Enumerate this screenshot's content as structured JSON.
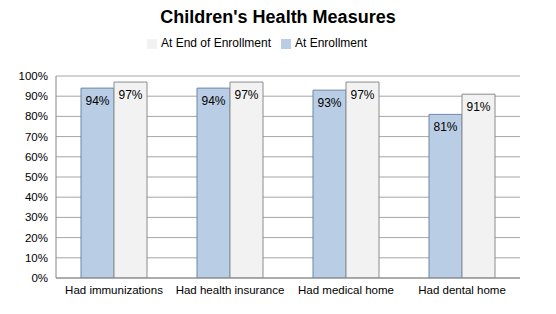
{
  "chart_data": {
    "type": "bar",
    "title": "Children's Health Measures",
    "categories": [
      "Had immunizations",
      "Had health insurance",
      "Had medical home",
      "Had dental home"
    ],
    "series": [
      {
        "name": "At Enrollment",
        "color": "#b9cde5",
        "values": [
          94,
          94,
          93,
          81
        ],
        "value_labels": [
          "94%",
          "94%",
          "93%",
          "81%"
        ]
      },
      {
        "name": "At End of Enrollment",
        "color": "#f2f2f2",
        "values": [
          97,
          97,
          97,
          91
        ],
        "value_labels": [
          "97%",
          "97%",
          "97%",
          "91%"
        ]
      }
    ],
    "ylim": [
      0,
      100
    ],
    "yticks": [
      {
        "value": 0,
        "label": "0%"
      },
      {
        "value": 10,
        "label": "10%"
      },
      {
        "value": 20,
        "label": "20%"
      },
      {
        "value": 30,
        "label": "30%"
      },
      {
        "value": 40,
        "label": "40%"
      },
      {
        "value": 50,
        "label": "50%"
      },
      {
        "value": 60,
        "label": "60%"
      },
      {
        "value": 70,
        "label": "70%"
      },
      {
        "value": 80,
        "label": "80%"
      },
      {
        "value": 90,
        "label": "90%"
      },
      {
        "value": 100,
        "label": "100%"
      }
    ],
    "grid": true,
    "legend": "top",
    "data_labels": true
  }
}
